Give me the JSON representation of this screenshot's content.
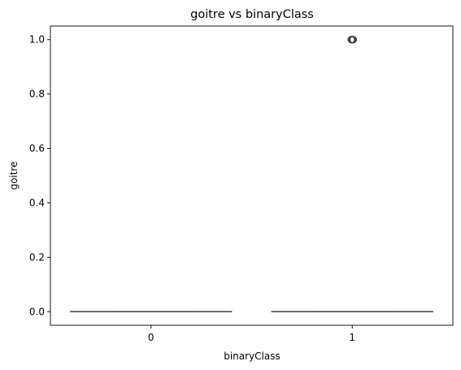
{
  "chart_data": {
    "type": "box",
    "title": "goitre vs binaryClass",
    "xlabel": "binaryClass",
    "ylabel": "goitre",
    "categories": [
      "0",
      "1"
    ],
    "ylim": [
      -0.05,
      1.05
    ],
    "yticks": [
      0.0,
      0.2,
      0.4,
      0.6,
      0.8,
      1.0
    ],
    "ytick_labels": [
      "0.0",
      "0.2",
      "0.4",
      "0.6",
      "0.8",
      "1.0"
    ],
    "grid": false,
    "boxes": [
      {
        "category": "0",
        "min": 0,
        "q1": 0,
        "median": 0,
        "q3": 0,
        "max": 0,
        "outliers": []
      },
      {
        "category": "1",
        "min": 0,
        "q1": 0,
        "median": 0,
        "q3": 0,
        "max": 0,
        "outliers": [
          1.0
        ]
      }
    ],
    "colors": {
      "box_line": "#3f3f3f",
      "axis": "#000000"
    }
  }
}
